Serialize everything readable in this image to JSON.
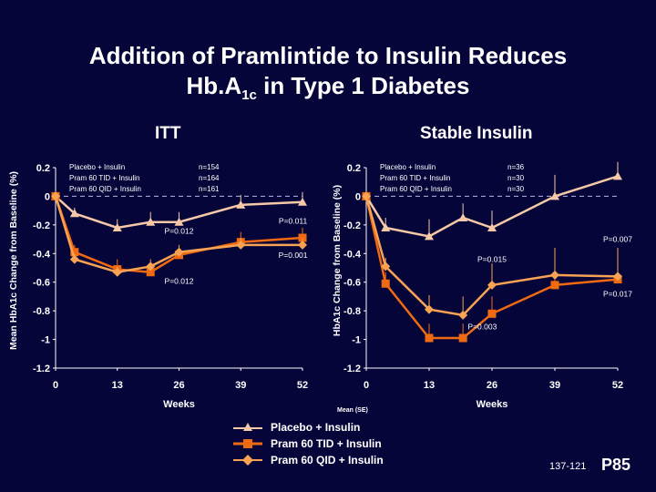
{
  "title_line1": "Addition of Pramlintide to Insulin Reduces",
  "title_line2_pre": "Hb.A",
  "title_line2_sub": "1c",
  "title_line2_post": " in Type 1 Diabetes",
  "colors": {
    "background": "#06053a",
    "placebo": "#f5c9a8",
    "tid": "#f06a12",
    "qid": "#f7a353"
  },
  "chart_data": [
    {
      "type": "line",
      "title": "ITT",
      "ylabel": "Mean HbA1c Change from Baseline (%)",
      "xlabel": "Weeks",
      "xlim": [
        0,
        52
      ],
      "ylim": [
        -1.2,
        0.2
      ],
      "xticks": [
        0,
        13,
        26,
        39,
        52
      ],
      "yticks": [
        0.2,
        0,
        -0.2,
        -0.4,
        -0.6,
        -0.8,
        -1,
        -1.2
      ],
      "ytick_labels": [
        "0.2",
        "0",
        "-0.2",
        "-0.4",
        "-0.6",
        "-0.8",
        "-1",
        "-1.2"
      ],
      "x": [
        0,
        4,
        13,
        20,
        26,
        39,
        52
      ],
      "series": [
        {
          "name": "Placebo + Insulin",
          "n": "n=154",
          "marker": "triangle",
          "values": [
            0,
            -0.12,
            -0.22,
            -0.18,
            -0.18,
            -0.06,
            -0.04
          ],
          "se": [
            0,
            0.04,
            0.06,
            0.07,
            0.07,
            0.07,
            0.07
          ]
        },
        {
          "name": "Pram 60 TID + Insulin",
          "n": "n=164",
          "marker": "square",
          "values": [
            0,
            -0.39,
            -0.51,
            -0.53,
            -0.41,
            -0.32,
            -0.29
          ],
          "se": [
            0,
            0.05,
            0.07,
            0.06,
            0.07,
            0.07,
            0.07
          ]
        },
        {
          "name": "Pram 60 QID + Insulin",
          "n": "n=161",
          "marker": "diamond",
          "values": [
            0,
            -0.44,
            -0.53,
            -0.49,
            -0.39,
            -0.34,
            -0.34
          ],
          "se": [
            0,
            0.04,
            0.04,
            0.05,
            0.05,
            0.05,
            0.05
          ]
        }
      ],
      "annotations": [
        {
          "text": "P=0.011",
          "x": 50,
          "y": -0.19
        },
        {
          "text": "P=0.012",
          "x": 26,
          "y": -0.26
        },
        {
          "text": "P=0.001",
          "x": 50,
          "y": -0.43
        },
        {
          "text": "P=0.012",
          "x": 26,
          "y": -0.61
        }
      ]
    },
    {
      "type": "line",
      "title": "Stable Insulin",
      "ylabel": "HbA1c Change from Baseline (%)",
      "xlabel": "Weeks",
      "xlim": [
        0,
        52
      ],
      "ylim": [
        -1.2,
        0.2
      ],
      "xticks": [
        0,
        13,
        26,
        39,
        52
      ],
      "yticks": [
        0.2,
        0,
        -0.2,
        -0.4,
        -0.6,
        -0.8,
        -1,
        -1.2
      ],
      "ytick_labels": [
        "0.2",
        "0",
        "-0.2",
        "-0.4",
        "-0.6",
        "-0.8",
        "-1",
        "-1.2"
      ],
      "x": [
        0,
        4,
        13,
        20,
        26,
        39,
        52
      ],
      "series": [
        {
          "name": "Placebo + Insulin",
          "n": "n=36",
          "marker": "triangle",
          "values": [
            0,
            -0.22,
            -0.28,
            -0.15,
            -0.22,
            0,
            0.14
          ],
          "se": [
            0,
            0.07,
            0.12,
            0.1,
            0.12,
            0.15,
            0.1
          ]
        },
        {
          "name": "Pram 60 TID + Insulin",
          "n": "n=30",
          "marker": "square",
          "values": [
            0,
            -0.61,
            -0.99,
            -0.99,
            -0.82,
            -0.62,
            -0.58
          ],
          "se": [
            0,
            0.08,
            0.1,
            0.1,
            0.12,
            0.1,
            0.12
          ]
        },
        {
          "name": "Pram 60 QID + Insulin",
          "n": "n=30",
          "marker": "diamond",
          "values": [
            0,
            -0.49,
            -0.79,
            -0.83,
            -0.62,
            -0.55,
            -0.56
          ],
          "se": [
            0,
            0.06,
            0.1,
            0.13,
            0.15,
            0.19,
            0.2
          ]
        }
      ],
      "annotations": [
        {
          "text": "P=0.007",
          "x": 52,
          "y": -0.32
        },
        {
          "text": "P=0.015",
          "x": 26,
          "y": -0.46
        },
        {
          "text": "P=0.017",
          "x": 52,
          "y": -0.7
        },
        {
          "text": "P=0.003",
          "x": 24,
          "y": -0.93
        }
      ]
    }
  ],
  "legend": {
    "note": "Mean (SE)",
    "items": [
      "Placebo + Insulin",
      "Pram 60 TID + Insulin",
      "Pram 60 QID + Insulin"
    ]
  },
  "footer": {
    "code": "137-121",
    "page": "P85"
  }
}
